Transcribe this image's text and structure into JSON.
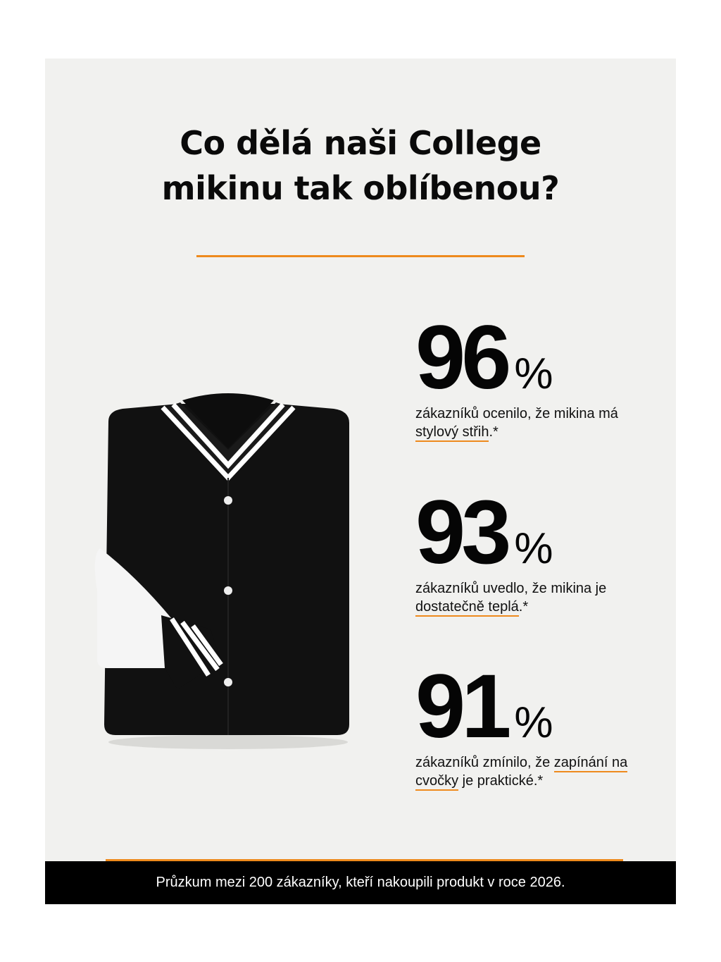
{
  "title": {
    "line1": "Co dělá naši College",
    "line2": "mikinu tak oblíbenou?"
  },
  "colors": {
    "accent": "#ee8a1d",
    "background": "#f1f1ef",
    "footer": "#000000"
  },
  "image": {
    "icon": "varsity-jacket-image"
  },
  "stats": [
    {
      "value": "96",
      "unit": "%",
      "text_before": "zákazníků ocenilo, že mikina má ",
      "highlight": "stylový střih",
      "text_after": ".*"
    },
    {
      "value": "93",
      "unit": "%",
      "text_before": "zákazníků uvedlo, že mikina je ",
      "highlight": "dostatečně teplá",
      "text_after": ".*"
    },
    {
      "value": "91",
      "unit": "%",
      "text_before": "zákazníků zmínilo, že ",
      "highlight": "zapínání na cvočky",
      "text_after": " je praktické.*"
    }
  ],
  "footer": {
    "text": "Průzkum mezi 200 zákazníky, kteří nakoupili produkt v roce 2026."
  }
}
